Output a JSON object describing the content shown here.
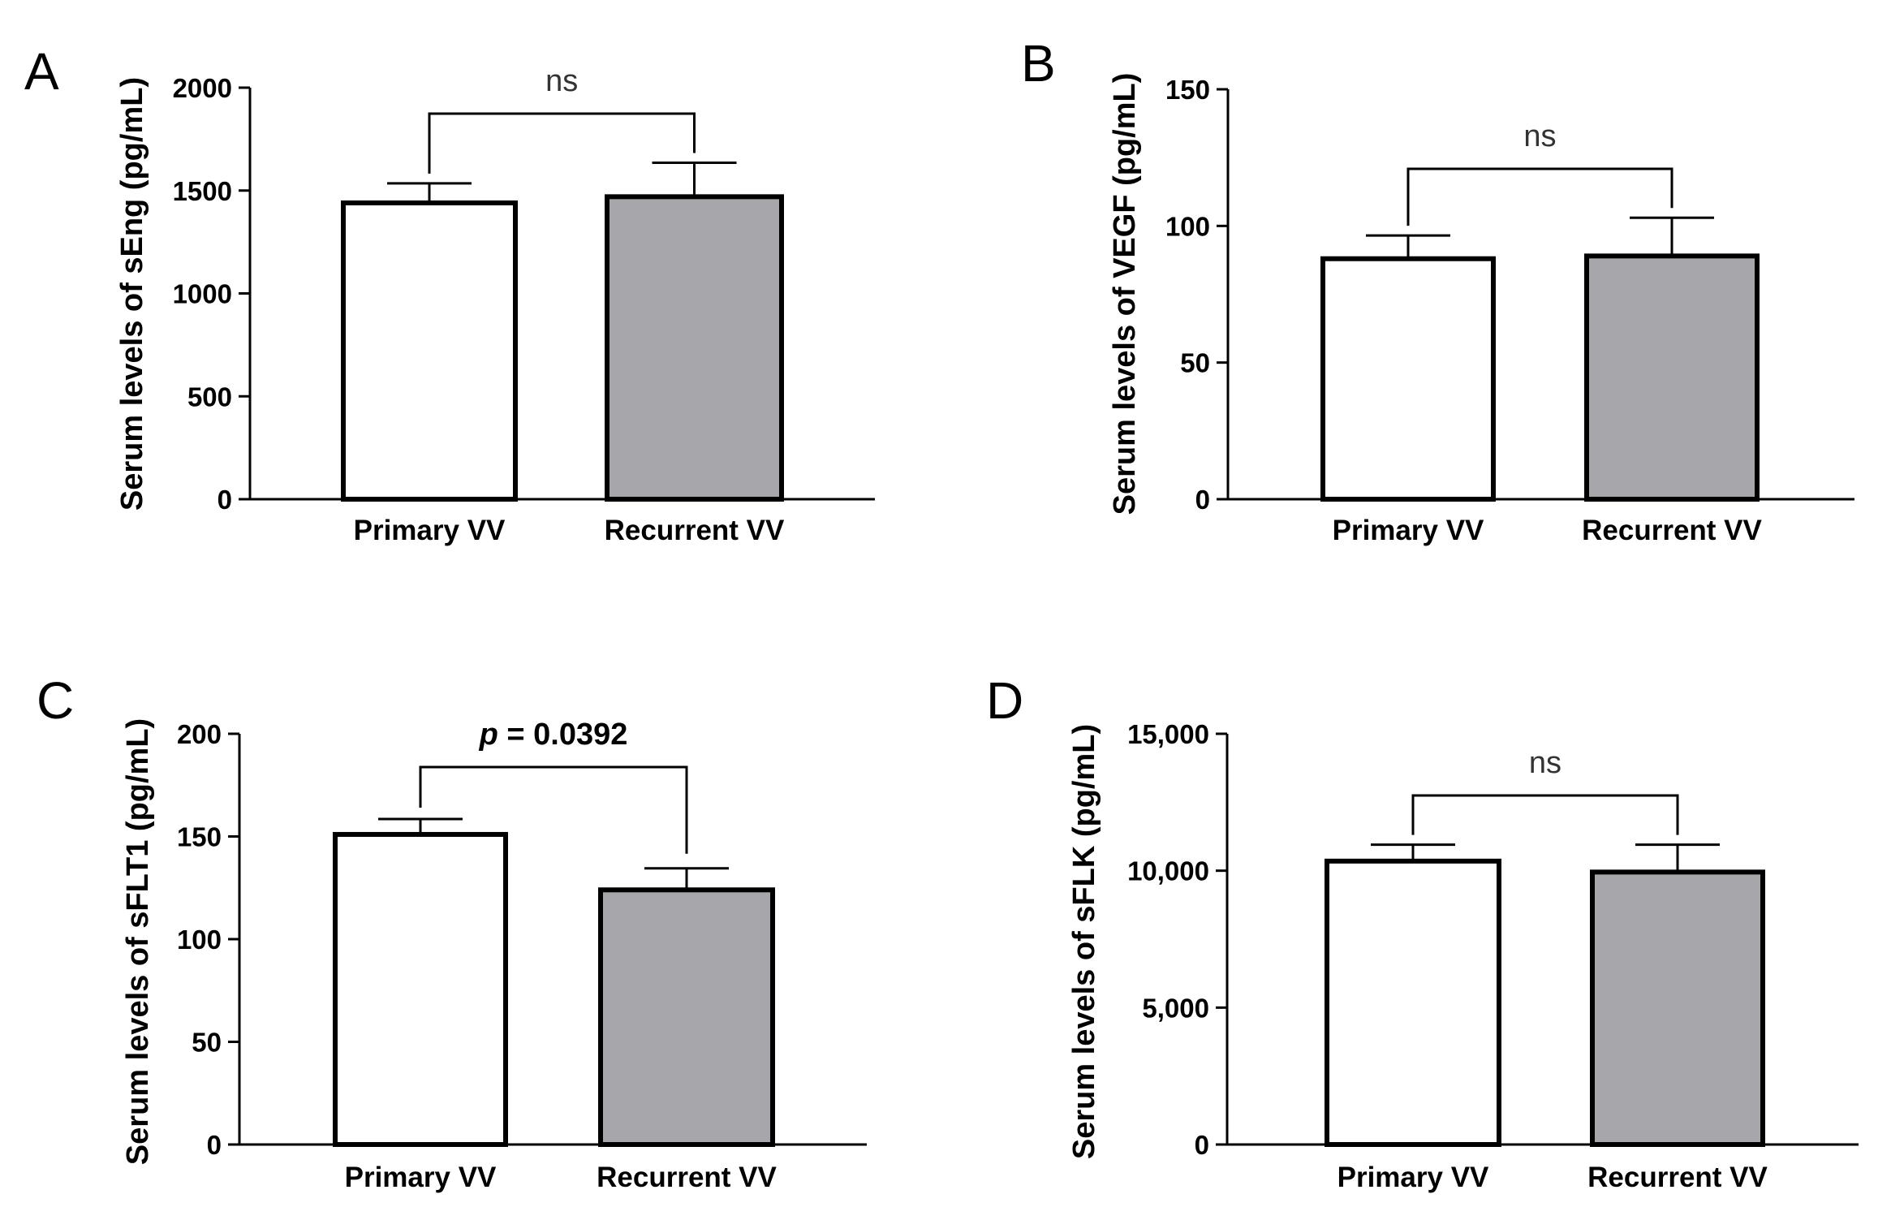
{
  "chart_data": [
    {
      "type": "bar",
      "panel": "A",
      "categories": [
        "Primary VV",
        "Recurrent VV"
      ],
      "values": [
        1440,
        1470
      ],
      "errors": [
        95,
        165
      ],
      "bar_colors": [
        "#ffffff",
        "#a7a6aa"
      ],
      "ylabel": "Serum levels of sEng (pg/mL)",
      "ylim": [
        0,
        2000
      ],
      "yticks": [
        0,
        500,
        1000,
        1500,
        2000
      ],
      "ytick_labels": [
        "0",
        "500",
        "1000",
        "1500",
        "2000"
      ],
      "significance": {
        "label": "ns",
        "bold": false
      }
    },
    {
      "type": "bar",
      "panel": "B",
      "categories": [
        "Primary VV",
        "Recurrent VV"
      ],
      "values": [
        88,
        89
      ],
      "errors": [
        8.5,
        14
      ],
      "bar_colors": [
        "#ffffff",
        "#a7a6aa"
      ],
      "ylabel": "Serum levels of VEGF (pg/mL)",
      "ylim": [
        0,
        150
      ],
      "yticks": [
        0,
        50,
        100,
        150
      ],
      "ytick_labels": [
        "0",
        "50",
        "100",
        "150"
      ],
      "significance": {
        "label": "ns",
        "bold": false
      }
    },
    {
      "type": "bar",
      "panel": "C",
      "categories": [
        "Primary VV",
        "Recurrent VV"
      ],
      "values": [
        151,
        124
      ],
      "errors": [
        7.5,
        10.5
      ],
      "bar_colors": [
        "#ffffff",
        "#a7a6aa"
      ],
      "ylabel": "Serum levels of sFLT1 (pg/mL)",
      "ylim": [
        0,
        200
      ],
      "yticks": [
        0,
        50,
        100,
        150,
        200
      ],
      "ytick_labels": [
        "0",
        "50",
        "100",
        "150",
        "200"
      ],
      "significance": {
        "label": "p = 0.0392",
        "prefix": "p",
        "rest": " = 0.0392",
        "bold": true
      }
    },
    {
      "type": "bar",
      "panel": "D",
      "categories": [
        "Primary VV",
        "Recurrent VV"
      ],
      "values": [
        10350,
        9950
      ],
      "errors": [
        600,
        1000
      ],
      "bar_colors": [
        "#ffffff",
        "#a7a6aa"
      ],
      "ylabel": "Serum levels of sFLK (pg/mL)",
      "ylim": [
        0,
        15000
      ],
      "yticks": [
        0,
        5000,
        10000,
        15000
      ],
      "ytick_labels": [
        "0",
        "5,000",
        "10,000",
        "15,000"
      ],
      "significance": {
        "label": "ns",
        "bold": false
      }
    }
  ]
}
